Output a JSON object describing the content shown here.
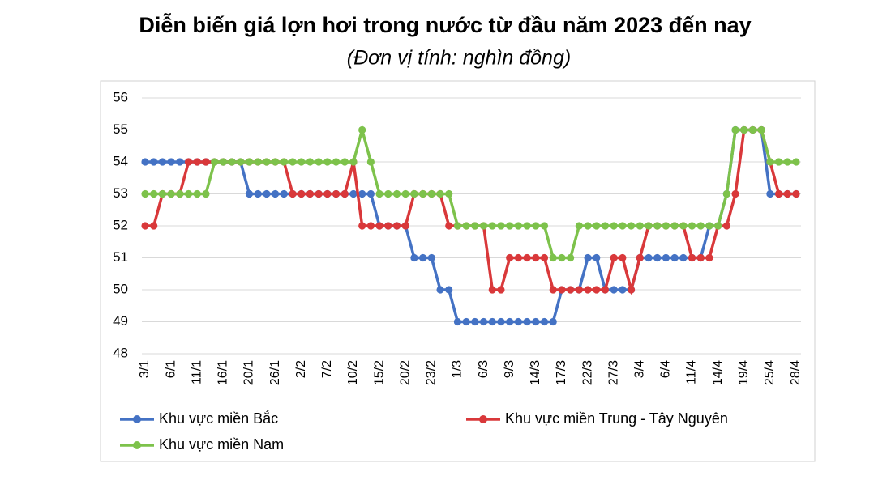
{
  "chart_data": {
    "type": "line",
    "title": "Diễn biến giá lợn hơi trong nước từ đầu năm 2023 đến nay",
    "subtitle": "(Đơn vị tính: nghìn đồng)",
    "categories": [
      "3/1",
      null,
      null,
      "6/1",
      null,
      null,
      "11/1",
      null,
      null,
      "16/1",
      null,
      null,
      "20/1",
      null,
      null,
      "26/1",
      null,
      null,
      "2/2",
      null,
      null,
      "7/2",
      null,
      null,
      "10/2",
      null,
      null,
      "15/2",
      null,
      null,
      "20/2",
      null,
      null,
      "23/2",
      null,
      null,
      "1/3",
      null,
      null,
      "6/3",
      null,
      null,
      "9/3",
      null,
      null,
      "14/3",
      null,
      null,
      "17/3",
      null,
      null,
      "22/3",
      null,
      null,
      "27/3",
      null,
      null,
      "3/4",
      null,
      null,
      "6/4",
      null,
      null,
      "11/4",
      null,
      null,
      "14/4",
      null,
      null,
      "19/4",
      null,
      null,
      "25/4",
      null,
      null,
      "28/4"
    ],
    "series": [
      {
        "name": "Khu vực miền Bắc",
        "color": "#4472c4",
        "values": [
          54,
          54,
          54,
          54,
          54,
          54,
          54,
          54,
          54,
          54,
          54,
          54,
          53,
          53,
          53,
          53,
          53,
          53,
          53,
          53,
          53,
          53,
          53,
          53,
          53,
          53,
          53,
          52,
          52,
          52,
          52,
          51,
          51,
          51,
          50,
          50,
          49,
          49,
          49,
          49,
          49,
          49,
          49,
          49,
          49,
          49,
          49,
          49,
          50,
          50,
          50,
          51,
          51,
          50,
          50,
          50,
          50,
          51,
          51,
          51,
          51,
          51,
          51,
          51,
          51,
          52,
          52,
          53,
          55,
          55,
          55,
          55,
          53,
          53,
          53,
          53
        ]
      },
      {
        "name": "Khu vực miền Trung - Tây Nguyên",
        "color": "#d9383a",
        "values": [
          52,
          52,
          53,
          53,
          53,
          54,
          54,
          54,
          54,
          54,
          54,
          54,
          54,
          54,
          54,
          54,
          54,
          53,
          53,
          53,
          53,
          53,
          53,
          53,
          54,
          52,
          52,
          52,
          52,
          52,
          52,
          53,
          53,
          53,
          53,
          52,
          52,
          52,
          52,
          52,
          50,
          50,
          51,
          51,
          51,
          51,
          51,
          50,
          50,
          50,
          50,
          50,
          50,
          50,
          51,
          51,
          50,
          51,
          52,
          52,
          52,
          52,
          52,
          51,
          51,
          51,
          52,
          52,
          53,
          55,
          55,
          55,
          54,
          53,
          53,
          53
        ]
      },
      {
        "name": "Khu vực miền Nam",
        "color": "#7dc24b",
        "values": [
          53,
          53,
          53,
          53,
          53,
          53,
          53,
          53,
          54,
          54,
          54,
          54,
          54,
          54,
          54,
          54,
          54,
          54,
          54,
          54,
          54,
          54,
          54,
          54,
          54,
          55,
          54,
          53,
          53,
          53,
          53,
          53,
          53,
          53,
          53,
          53,
          52,
          52,
          52,
          52,
          52,
          52,
          52,
          52,
          52,
          52,
          52,
          51,
          51,
          51,
          52,
          52,
          52,
          52,
          52,
          52,
          52,
          52,
          52,
          52,
          52,
          52,
          52,
          52,
          52,
          52,
          52,
          53,
          55,
          55,
          55,
          55,
          54,
          54,
          54,
          54
        ]
      }
    ],
    "ylim": [
      48,
      56
    ],
    "yticks": [
      48,
      49,
      50,
      51,
      52,
      53,
      54,
      55,
      56
    ],
    "grid": true
  }
}
